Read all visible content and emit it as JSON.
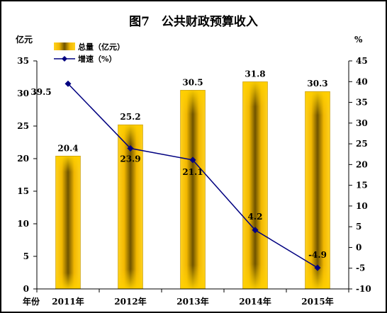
{
  "chart_data": {
    "type": "bar",
    "title": "图7　公共财政预算收入",
    "left_axis_unit": "亿元",
    "right_axis_unit": "%",
    "x_axis_label": "年份",
    "categories": [
      "2011年",
      "2012年",
      "2013年",
      "2014年",
      "2015年"
    ],
    "series": [
      {
        "name": "总量（亿元）",
        "type": "bar",
        "axis": "left",
        "color": "#FFC000",
        "values": [
          20.4,
          25.2,
          30.5,
          31.8,
          30.3
        ],
        "labels": [
          "20.4",
          "25.2",
          "30.5",
          "31.8",
          "30.3"
        ]
      },
      {
        "name": "增速（%）",
        "type": "line",
        "axis": "right",
        "color": "#000080",
        "values": [
          39.5,
          23.9,
          21.1,
          4.2,
          -4.9
        ],
        "labels": [
          "39.5",
          "23.9",
          "21.1",
          "4.2",
          "-4.9"
        ]
      }
    ],
    "left_ylim": [
      0,
      35
    ],
    "left_ticks": [
      0,
      5,
      10,
      15,
      20,
      25,
      30,
      35
    ],
    "right_ylim": [
      -10,
      45
    ],
    "right_ticks": [
      -10,
      -5,
      0,
      5,
      10,
      15,
      20,
      25,
      30,
      35,
      40,
      45
    ],
    "grid": false,
    "legend_position": "top-left"
  }
}
